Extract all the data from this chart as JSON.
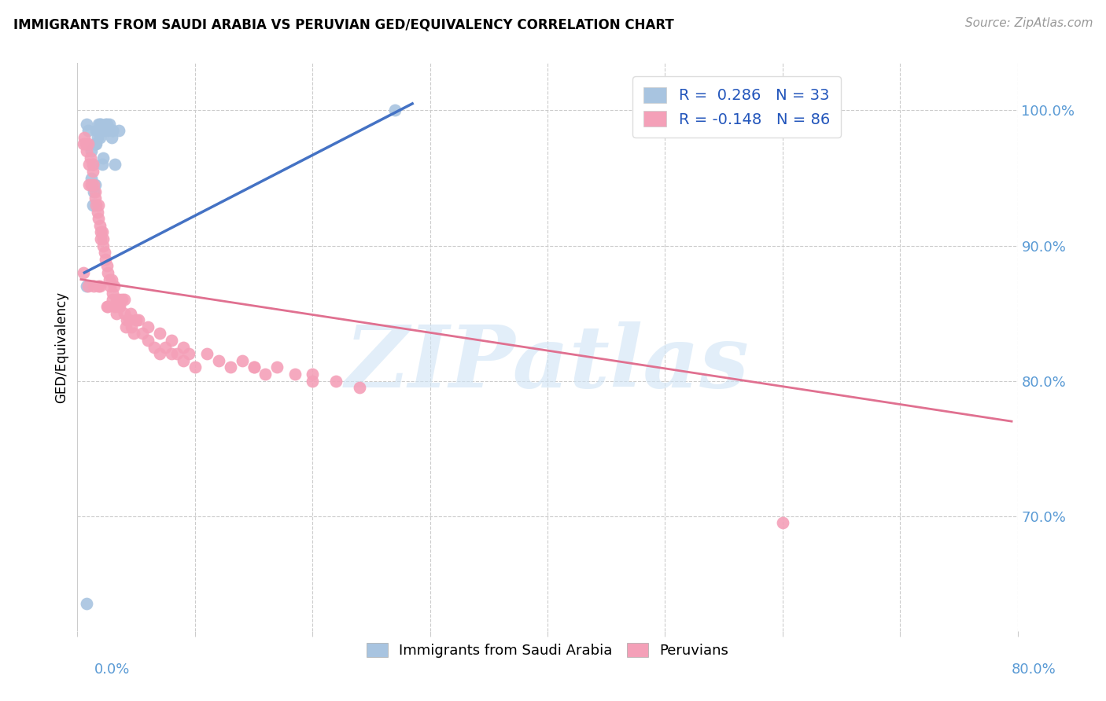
{
  "title": "IMMIGRANTS FROM SAUDI ARABIA VS PERUVIAN GED/EQUIVALENCY CORRELATION CHART",
  "source": "Source: ZipAtlas.com",
  "ylabel": "GED/Equivalency",
  "yticks": [
    0.7,
    0.8,
    0.9,
    1.0
  ],
  "ytick_labels": [
    "70.0%",
    "80.0%",
    "90.0%",
    "100.0%"
  ],
  "xlim": [
    0.0,
    0.8
  ],
  "ylim": [
    0.615,
    1.035
  ],
  "saudi_color": "#a8c4e0",
  "peruvian_color": "#f4a0b8",
  "saudi_line_color": "#4472c4",
  "peruvian_line_color": "#e07090",
  "watermark": "ZIPatlas",
  "saudi_x": [
    0.008,
    0.008,
    0.012,
    0.013,
    0.014,
    0.015,
    0.016,
    0.016,
    0.017,
    0.018,
    0.019,
    0.02,
    0.021,
    0.022,
    0.023,
    0.025,
    0.027,
    0.03,
    0.032,
    0.035,
    0.012,
    0.013,
    0.015,
    0.017,
    0.019,
    0.021,
    0.024,
    0.026,
    0.029,
    0.03,
    0.27,
    0.008,
    0.009
  ],
  "saudi_y": [
    0.635,
    0.87,
    0.97,
    0.96,
    0.94,
    0.975,
    0.985,
    0.975,
    0.98,
    0.99,
    0.99,
    0.99,
    0.985,
    0.965,
    0.985,
    0.99,
    0.99,
    0.985,
    0.96,
    0.985,
    0.95,
    0.93,
    0.945,
    0.985,
    0.98,
    0.96,
    0.99,
    0.985,
    0.98,
    0.985,
    1.0,
    0.99,
    0.985
  ],
  "peruvian_x": [
    0.005,
    0.006,
    0.007,
    0.008,
    0.009,
    0.01,
    0.01,
    0.011,
    0.012,
    0.013,
    0.013,
    0.014,
    0.015,
    0.015,
    0.016,
    0.017,
    0.018,
    0.018,
    0.019,
    0.02,
    0.02,
    0.021,
    0.022,
    0.022,
    0.023,
    0.024,
    0.025,
    0.026,
    0.027,
    0.028,
    0.029,
    0.03,
    0.031,
    0.032,
    0.033,
    0.035,
    0.036,
    0.038,
    0.04,
    0.042,
    0.044,
    0.046,
    0.048,
    0.05,
    0.055,
    0.06,
    0.065,
    0.07,
    0.075,
    0.08,
    0.085,
    0.09,
    0.095,
    0.1,
    0.11,
    0.12,
    0.13,
    0.14,
    0.15,
    0.16,
    0.005,
    0.009,
    0.014,
    0.018,
    0.025,
    0.03,
    0.035,
    0.04,
    0.045,
    0.052,
    0.06,
    0.07,
    0.08,
    0.09,
    0.6,
    0.15,
    0.17,
    0.185,
    0.2,
    0.22,
    0.019,
    0.026,
    0.033,
    0.041,
    0.2,
    0.24
  ],
  "peruvian_y": [
    0.975,
    0.98,
    0.975,
    0.97,
    0.975,
    0.96,
    0.945,
    0.965,
    0.945,
    0.955,
    0.96,
    0.945,
    0.94,
    0.935,
    0.93,
    0.925,
    0.93,
    0.92,
    0.915,
    0.91,
    0.905,
    0.91,
    0.9,
    0.905,
    0.895,
    0.89,
    0.885,
    0.88,
    0.875,
    0.87,
    0.875,
    0.865,
    0.87,
    0.855,
    0.86,
    0.86,
    0.855,
    0.86,
    0.85,
    0.845,
    0.845,
    0.84,
    0.835,
    0.845,
    0.835,
    0.83,
    0.825,
    0.82,
    0.825,
    0.82,
    0.82,
    0.815,
    0.82,
    0.81,
    0.82,
    0.815,
    0.81,
    0.815,
    0.81,
    0.805,
    0.88,
    0.87,
    0.87,
    0.87,
    0.855,
    0.86,
    0.855,
    0.86,
    0.85,
    0.845,
    0.84,
    0.835,
    0.83,
    0.825,
    0.695,
    0.81,
    0.81,
    0.805,
    0.805,
    0.8,
    0.87,
    0.855,
    0.85,
    0.84,
    0.8,
    0.795
  ],
  "saudi_trend_x": [
    0.006,
    0.285
  ],
  "saudi_trend_y": [
    0.88,
    1.005
  ],
  "peruvian_trend_x": [
    0.003,
    0.795
  ],
  "peruvian_trend_y": [
    0.875,
    0.77
  ]
}
